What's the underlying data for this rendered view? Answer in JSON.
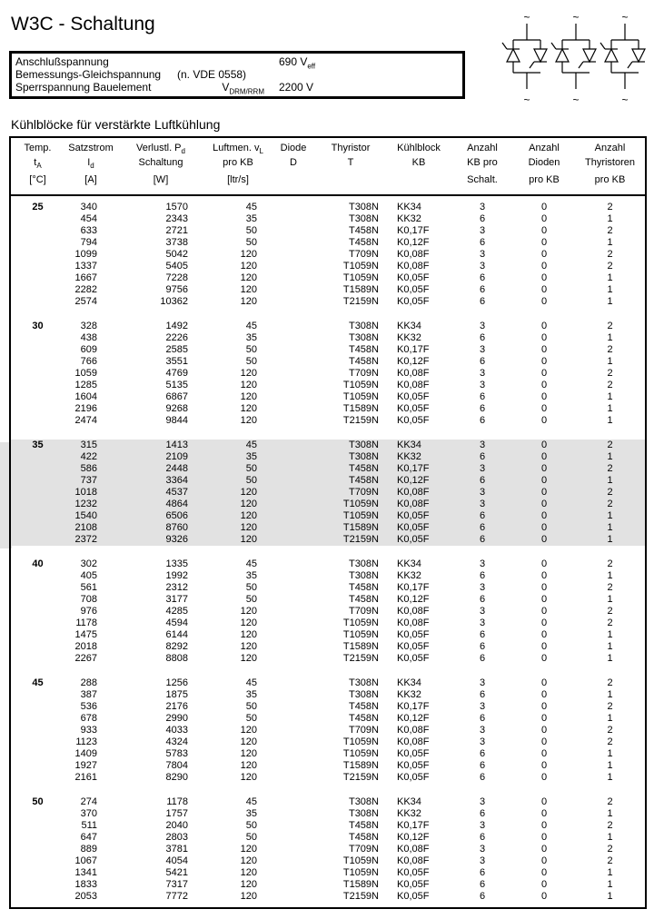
{
  "page": {
    "title": "W3C - Schaltung",
    "section_heading": "Kühlblöcke für verstärkte Luftkühlung"
  },
  "spec_box": {
    "row1_label": "Anschlußspannung",
    "row1_value": "690 V",
    "row1_value_sub": "eff",
    "row2_label": "Bemessungs-Gleichspannung",
    "row2_note": "(n. VDE 0558)",
    "row3_label": "Sperrspannung Bauelement",
    "row3_symbol": "V",
    "row3_symbol_sub": "DRM/RRM",
    "row3_value": "2200 V"
  },
  "circuit": {
    "description": "three antiparallel thyristor pairs (W3C three-phase AC controller)",
    "ac_mark": "~"
  },
  "colors": {
    "shaded_band": "#e2e2e2",
    "text": "#000000",
    "background": "#ffffff"
  },
  "table": {
    "columns": [
      {
        "l1": "Temp.",
        "l2": "t",
        "l2sub": "A",
        "l3": "[°C]"
      },
      {
        "l1": "Satzstrom",
        "l2": "I",
        "l2sub": "d",
        "l3": "[A]"
      },
      {
        "l1": "Verlustl. P",
        "l1sub": "d",
        "l2": "Schaltung",
        "l3": "[W]"
      },
      {
        "l1": "Luftmen. v",
        "l1sub": "L",
        "l2": "pro KB",
        "l3": "[ltr/s]"
      },
      {
        "l1": "Diode",
        "l2": "D",
        "l3": ""
      },
      {
        "l1": "Thyristor",
        "l2": "T",
        "l3": ""
      },
      {
        "l1": "Kühlblock",
        "l2": "KB",
        "l3": ""
      },
      {
        "l1": "Anzahl",
        "l2": "KB pro",
        "l3": "Schalt."
      },
      {
        "l1": "Anzahl",
        "l2": "Dioden",
        "l3": "pro KB"
      },
      {
        "l1": "Anzahl",
        "l2": "Thyristoren",
        "l3": "pro KB"
      }
    ],
    "blocks": [
      {
        "temp": "25",
        "shaded": false,
        "rows": [
          [
            "340",
            "1570",
            "45",
            "",
            "T308N",
            "KK34",
            "3",
            "0",
            "2"
          ],
          [
            "454",
            "2343",
            "35",
            "",
            "T308N",
            "KK32",
            "6",
            "0",
            "1"
          ],
          [
            "633",
            "2721",
            "50",
            "",
            "T458N",
            "K0,17F",
            "3",
            "0",
            "2"
          ],
          [
            "794",
            "3738",
            "50",
            "",
            "T458N",
            "K0,12F",
            "6",
            "0",
            "1"
          ],
          [
            "1099",
            "5042",
            "120",
            "",
            "T709N",
            "K0,08F",
            "3",
            "0",
            "2"
          ],
          [
            "1337",
            "5405",
            "120",
            "",
            "T1059N",
            "K0,08F",
            "3",
            "0",
            "2"
          ],
          [
            "1667",
            "7228",
            "120",
            "",
            "T1059N",
            "K0,05F",
            "6",
            "0",
            "1"
          ],
          [
            "2282",
            "9756",
            "120",
            "",
            "T1589N",
            "K0,05F",
            "6",
            "0",
            "1"
          ],
          [
            "2574",
            "10362",
            "120",
            "",
            "T2159N",
            "K0,05F",
            "6",
            "0",
            "1"
          ]
        ]
      },
      {
        "temp": "30",
        "shaded": false,
        "rows": [
          [
            "328",
            "1492",
            "45",
            "",
            "T308N",
            "KK34",
            "3",
            "0",
            "2"
          ],
          [
            "438",
            "2226",
            "35",
            "",
            "T308N",
            "KK32",
            "6",
            "0",
            "1"
          ],
          [
            "609",
            "2585",
            "50",
            "",
            "T458N",
            "K0,17F",
            "3",
            "0",
            "2"
          ],
          [
            "766",
            "3551",
            "50",
            "",
            "T458N",
            "K0,12F",
            "6",
            "0",
            "1"
          ],
          [
            "1059",
            "4769",
            "120",
            "",
            "T709N",
            "K0,08F",
            "3",
            "0",
            "2"
          ],
          [
            "1285",
            "5135",
            "120",
            "",
            "T1059N",
            "K0,08F",
            "3",
            "0",
            "2"
          ],
          [
            "1604",
            "6867",
            "120",
            "",
            "T1059N",
            "K0,05F",
            "6",
            "0",
            "1"
          ],
          [
            "2196",
            "9268",
            "120",
            "",
            "T1589N",
            "K0,05F",
            "6",
            "0",
            "1"
          ],
          [
            "2474",
            "9844",
            "120",
            "",
            "T2159N",
            "K0,05F",
            "6",
            "0",
            "1"
          ]
        ]
      },
      {
        "temp": "35",
        "shaded": true,
        "rows": [
          [
            "315",
            "1413",
            "45",
            "",
            "T308N",
            "KK34",
            "3",
            "0",
            "2"
          ],
          [
            "422",
            "2109",
            "35",
            "",
            "T308N",
            "KK32",
            "6",
            "0",
            "1"
          ],
          [
            "586",
            "2448",
            "50",
            "",
            "T458N",
            "K0,17F",
            "3",
            "0",
            "2"
          ],
          [
            "737",
            "3364",
            "50",
            "",
            "T458N",
            "K0,12F",
            "6",
            "0",
            "1"
          ],
          [
            "1018",
            "4537",
            "120",
            "",
            "T709N",
            "K0,08F",
            "3",
            "0",
            "2"
          ],
          [
            "1232",
            "4864",
            "120",
            "",
            "T1059N",
            "K0,08F",
            "3",
            "0",
            "2"
          ],
          [
            "1540",
            "6506",
            "120",
            "",
            "T1059N",
            "K0,05F",
            "6",
            "0",
            "1"
          ],
          [
            "2108",
            "8760",
            "120",
            "",
            "T1589N",
            "K0,05F",
            "6",
            "0",
            "1"
          ],
          [
            "2372",
            "9326",
            "120",
            "",
            "T2159N",
            "K0,05F",
            "6",
            "0",
            "1"
          ]
        ]
      },
      {
        "temp": "40",
        "shaded": false,
        "rows": [
          [
            "302",
            "1335",
            "45",
            "",
            "T308N",
            "KK34",
            "3",
            "0",
            "2"
          ],
          [
            "405",
            "1992",
            "35",
            "",
            "T308N",
            "KK32",
            "6",
            "0",
            "1"
          ],
          [
            "561",
            "2312",
            "50",
            "",
            "T458N",
            "K0,17F",
            "3",
            "0",
            "2"
          ],
          [
            "708",
            "3177",
            "50",
            "",
            "T458N",
            "K0,12F",
            "6",
            "0",
            "1"
          ],
          [
            "976",
            "4285",
            "120",
            "",
            "T709N",
            "K0,08F",
            "3",
            "0",
            "2"
          ],
          [
            "1178",
            "4594",
            "120",
            "",
            "T1059N",
            "K0,08F",
            "3",
            "0",
            "2"
          ],
          [
            "1475",
            "6144",
            "120",
            "",
            "T1059N",
            "K0,05F",
            "6",
            "0",
            "1"
          ],
          [
            "2018",
            "8292",
            "120",
            "",
            "T1589N",
            "K0,05F",
            "6",
            "0",
            "1"
          ],
          [
            "2267",
            "8808",
            "120",
            "",
            "T2159N",
            "K0,05F",
            "6",
            "0",
            "1"
          ]
        ]
      },
      {
        "temp": "45",
        "shaded": false,
        "rows": [
          [
            "288",
            "1256",
            "45",
            "",
            "T308N",
            "KK34",
            "3",
            "0",
            "2"
          ],
          [
            "387",
            "1875",
            "35",
            "",
            "T308N",
            "KK32",
            "6",
            "0",
            "1"
          ],
          [
            "536",
            "2176",
            "50",
            "",
            "T458N",
            "K0,17F",
            "3",
            "0",
            "2"
          ],
          [
            "678",
            "2990",
            "50",
            "",
            "T458N",
            "K0,12F",
            "6",
            "0",
            "1"
          ],
          [
            "933",
            "4033",
            "120",
            "",
            "T709N",
            "K0,08F",
            "3",
            "0",
            "2"
          ],
          [
            "1123",
            "4324",
            "120",
            "",
            "T1059N",
            "K0,08F",
            "3",
            "0",
            "2"
          ],
          [
            "1409",
            "5783",
            "120",
            "",
            "T1059N",
            "K0,05F",
            "6",
            "0",
            "1"
          ],
          [
            "1927",
            "7804",
            "120",
            "",
            "T1589N",
            "K0,05F",
            "6",
            "0",
            "1"
          ],
          [
            "2161",
            "8290",
            "120",
            "",
            "T2159N",
            "K0,05F",
            "6",
            "0",
            "1"
          ]
        ]
      },
      {
        "temp": "50",
        "shaded": false,
        "rows": [
          [
            "274",
            "1178",
            "45",
            "",
            "T308N",
            "KK34",
            "3",
            "0",
            "2"
          ],
          [
            "370",
            "1757",
            "35",
            "",
            "T308N",
            "KK32",
            "6",
            "0",
            "1"
          ],
          [
            "511",
            "2040",
            "50",
            "",
            "T458N",
            "K0,17F",
            "3",
            "0",
            "2"
          ],
          [
            "647",
            "2803",
            "50",
            "",
            "T458N",
            "K0,12F",
            "6",
            "0",
            "1"
          ],
          [
            "889",
            "3781",
            "120",
            "",
            "T709N",
            "K0,08F",
            "3",
            "0",
            "2"
          ],
          [
            "1067",
            "4054",
            "120",
            "",
            "T1059N",
            "K0,08F",
            "3",
            "0",
            "2"
          ],
          [
            "1341",
            "5421",
            "120",
            "",
            "T1059N",
            "K0,05F",
            "6",
            "0",
            "1"
          ],
          [
            "1833",
            "7317",
            "120",
            "",
            "T1589N",
            "K0,05F",
            "6",
            "0",
            "1"
          ],
          [
            "2053",
            "7772",
            "120",
            "",
            "T2159N",
            "K0,05F",
            "6",
            "0",
            "1"
          ]
        ]
      }
    ]
  }
}
